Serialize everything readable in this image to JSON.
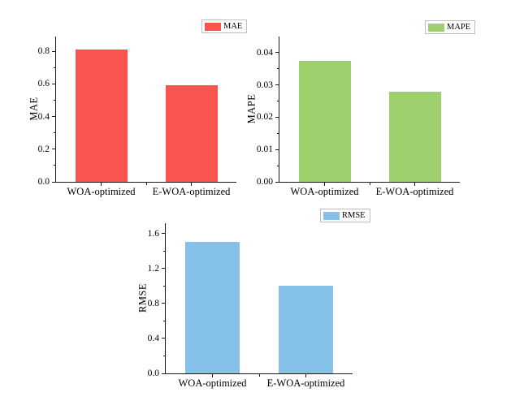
{
  "figure": {
    "background": "#ffffff",
    "categories": [
      "WOA-optimized",
      "E-WOA-optimized"
    ]
  },
  "chart_data": [
    {
      "id": "mae",
      "type": "bar",
      "title": "",
      "legend_label": "MAE",
      "legend_position": "top-right",
      "xlabel": "",
      "ylabel": "MAE",
      "categories": [
        "WOA-optimized",
        "E-WOA-optimized"
      ],
      "values": [
        0.81,
        0.59
      ],
      "ylim": [
        0,
        0.89
      ],
      "yticks": [
        0.0,
        0.2,
        0.4,
        0.6,
        0.8
      ],
      "ytick_labels": [
        "0.0",
        "0.2",
        "0.4",
        "0.6",
        "0.8"
      ],
      "bar_color": "#f95450",
      "grid": false
    },
    {
      "id": "mape",
      "type": "bar",
      "title": "",
      "legend_label": "MAPE",
      "legend_position": "top-right",
      "xlabel": "",
      "ylabel": "MAPE",
      "categories": [
        "WOA-optimized",
        "E-WOA-optimized"
      ],
      "values": [
        0.0375,
        0.028
      ],
      "ylim": [
        0,
        0.045
      ],
      "yticks": [
        0.0,
        0.01,
        0.02,
        0.03,
        0.04
      ],
      "ytick_labels": [
        "0.00",
        "0.01",
        "0.02",
        "0.03",
        "0.04"
      ],
      "bar_color": "#9fd06e",
      "grid": false
    },
    {
      "id": "rmse",
      "type": "bar",
      "title": "",
      "legend_label": "RMSE",
      "legend_position": "top-right",
      "xlabel": "",
      "ylabel": "RMSE",
      "categories": [
        "WOA-optimized",
        "E-WOA-optimized"
      ],
      "values": [
        1.51,
        1.0
      ],
      "ylim": [
        0,
        1.72
      ],
      "yticks": [
        0.0,
        0.4,
        0.8,
        1.2,
        1.6
      ],
      "ytick_labels": [
        "0.0",
        "0.4",
        "0.8",
        "1.2",
        "1.6"
      ],
      "bar_color": "#86c2e8",
      "grid": false
    }
  ],
  "colors": {
    "axis": "#1a1a1a",
    "legend_border": "#bfbfbf"
  }
}
